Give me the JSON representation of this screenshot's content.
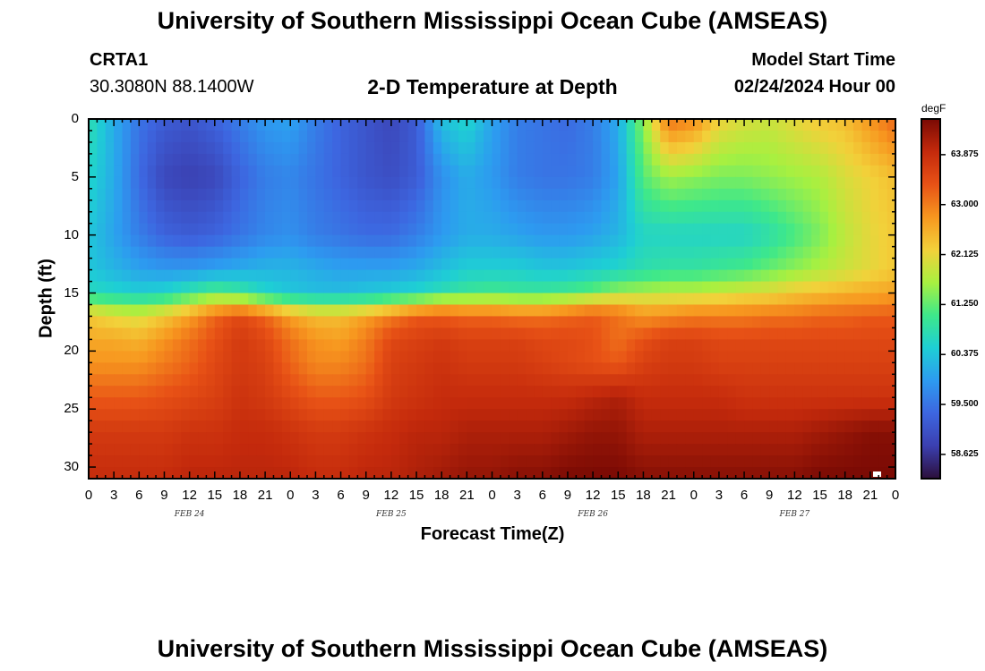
{
  "page_title_top": "University of Southern Mississippi Ocean Cube (AMSEAS)",
  "page_title_bottom": "University of Southern Mississippi Ocean Cube (AMSEAS)",
  "station": {
    "id": "CRTA1",
    "coords": "30.3080N  88.1400W"
  },
  "model": {
    "label": "Model Start Time",
    "value": "02/24/2024 Hour 00"
  },
  "colorscale": {
    "stops": [
      "#2c0f3a",
      "#3b3fb0",
      "#3d66e0",
      "#2d9bf0",
      "#1ecfd4",
      "#3ee88a",
      "#a8f040",
      "#f2d13a",
      "#f7971f",
      "#e85216",
      "#c42a0c",
      "#7a0a04"
    ]
  },
  "chart_data": {
    "type": "heatmap",
    "title": "2-D Temperature at Depth",
    "xlabel": "Forecast Time(Z)",
    "ylabel": "Depth (ft)",
    "x_hours": [
      0,
      3,
      6,
      9,
      12,
      15,
      18,
      21,
      24,
      27,
      30,
      33,
      36,
      39,
      42,
      45,
      48,
      51,
      54,
      57,
      60,
      63,
      66,
      69,
      72,
      75,
      78,
      81,
      84,
      87,
      90,
      93,
      96
    ],
    "x_tick_labels": [
      "0",
      "3",
      "6",
      "9",
      "12",
      "15",
      "18",
      "21",
      "0",
      "3",
      "6",
      "9",
      "12",
      "15",
      "18",
      "21",
      "0",
      "3",
      "6",
      "9",
      "12",
      "15",
      "18",
      "21",
      "0",
      "3",
      "6",
      "9",
      "12",
      "15",
      "18",
      "21",
      "0"
    ],
    "day_labels": [
      "FEB 24",
      "FEB 25",
      "FEB 26",
      "FEB 27"
    ],
    "y_ticks": [
      0,
      5,
      10,
      15,
      20,
      25,
      30
    ],
    "y_tick_labels": [
      "0",
      "5",
      "10",
      "15",
      "20",
      "25",
      "30"
    ],
    "ylim": [
      0,
      31
    ],
    "colorbar_unit": "degF",
    "colorbar_ticks": [
      58.625,
      59.5,
      60.375,
      61.25,
      62.125,
      63.0,
      63.875
    ],
    "colorbar_tick_labels": [
      "58.625",
      "59.500",
      "60.375",
      "61.250",
      "62.125",
      "63.000",
      "63.875"
    ],
    "crange": [
      58.2,
      64.5
    ],
    "depth_levels": [
      0,
      5,
      10,
      13,
      15,
      16,
      17,
      19,
      21,
      24,
      27,
      31
    ],
    "values": [
      [
        60.8,
        60.1,
        59.5,
        59.2,
        59.1,
        59.3,
        59.6,
        59.9,
        60.0,
        59.6,
        59.3,
        59.1,
        58.9,
        59.2,
        60.3,
        60.6,
        60.0,
        59.6,
        59.5,
        59.4,
        59.6,
        60.1,
        61.5,
        63.1,
        62.9,
        62.2,
        62.0,
        61.9,
        62.1,
        62.3,
        62.4,
        62.8,
        63.2
      ],
      [
        60.6,
        60.1,
        59.4,
        58.9,
        58.8,
        58.9,
        59.3,
        59.6,
        59.7,
        59.5,
        59.3,
        59.1,
        59.0,
        59.2,
        59.8,
        60.1,
        59.9,
        59.6,
        59.5,
        59.5,
        59.6,
        60.0,
        61.2,
        61.6,
        61.5,
        61.4,
        61.4,
        61.5,
        61.6,
        61.7,
        62.0,
        62.2,
        62.4
      ],
      [
        60.4,
        60.0,
        59.6,
        59.3,
        59.2,
        59.3,
        59.5,
        59.7,
        59.8,
        59.6,
        59.5,
        59.4,
        59.4,
        59.6,
        59.9,
        60.1,
        60.1,
        60.0,
        59.9,
        59.9,
        60.0,
        60.2,
        60.6,
        60.6,
        60.6,
        60.6,
        60.6,
        60.8,
        61.1,
        61.4,
        61.8,
        62.1,
        62.3
      ],
      [
        60.4,
        60.2,
        60.0,
        59.9,
        59.9,
        60.0,
        60.1,
        60.2,
        60.2,
        60.1,
        60.0,
        60.0,
        60.0,
        60.1,
        60.3,
        60.5,
        60.5,
        60.5,
        60.4,
        60.4,
        60.5,
        60.6,
        60.8,
        60.9,
        60.9,
        61.0,
        61.1,
        61.3,
        61.5,
        61.7,
        61.9,
        62.1,
        62.3
      ],
      [
        60.7,
        60.6,
        60.5,
        60.6,
        60.9,
        61.2,
        61.0,
        60.6,
        60.4,
        60.3,
        60.3,
        60.4,
        60.5,
        60.6,
        60.8,
        61.0,
        61.1,
        61.0,
        61.0,
        61.1,
        61.3,
        61.6,
        61.7,
        61.8,
        61.8,
        61.9,
        62.0,
        62.1,
        62.3,
        62.4,
        62.5,
        62.6,
        62.7
      ],
      [
        61.6,
        61.4,
        61.3,
        61.5,
        61.9,
        62.3,
        62.4,
        62.0,
        61.6,
        61.4,
        61.4,
        61.5,
        61.8,
        62.1,
        62.4,
        62.3,
        62.3,
        62.2,
        62.2,
        62.4,
        62.6,
        62.6,
        62.4,
        62.4,
        62.5,
        62.5,
        62.6,
        62.6,
        62.7,
        62.8,
        62.9,
        62.9,
        63.0
      ],
      [
        62.3,
        62.1,
        62.0,
        62.3,
        62.7,
        63.2,
        63.5,
        63.2,
        62.7,
        62.4,
        62.4,
        62.7,
        63.0,
        63.3,
        63.3,
        63.2,
        63.2,
        63.1,
        63.1,
        63.2,
        63.3,
        63.1,
        62.8,
        62.9,
        63.0,
        63.0,
        63.0,
        63.1,
        63.1,
        63.2,
        63.2,
        63.3,
        63.3
      ],
      [
        62.6,
        62.6,
        62.5,
        62.8,
        63.1,
        63.4,
        63.7,
        63.5,
        63.1,
        62.8,
        62.7,
        63.0,
        63.5,
        63.6,
        63.7,
        63.6,
        63.6,
        63.6,
        63.5,
        63.5,
        63.4,
        63.1,
        63.4,
        63.6,
        63.6,
        63.5,
        63.5,
        63.5,
        63.5,
        63.5,
        63.5,
        63.5,
        63.5
      ],
      [
        62.8,
        62.8,
        62.8,
        63.0,
        63.2,
        63.5,
        63.7,
        63.6,
        63.2,
        62.9,
        62.9,
        63.1,
        63.6,
        63.7,
        63.8,
        63.7,
        63.7,
        63.7,
        63.6,
        63.5,
        63.4,
        63.3,
        63.6,
        63.7,
        63.7,
        63.6,
        63.6,
        63.6,
        63.6,
        63.6,
        63.6,
        63.6,
        63.6
      ],
      [
        63.3,
        63.3,
        63.3,
        63.4,
        63.5,
        63.6,
        63.8,
        63.7,
        63.5,
        63.3,
        63.3,
        63.4,
        63.7,
        63.8,
        63.9,
        63.9,
        63.9,
        63.9,
        63.9,
        63.9,
        64.0,
        64.1,
        63.9,
        63.9,
        63.9,
        63.9,
        63.8,
        63.8,
        63.8,
        63.8,
        63.8,
        63.8,
        63.8
      ],
      [
        63.7,
        63.7,
        63.7,
        63.7,
        63.8,
        63.8,
        63.9,
        63.9,
        63.8,
        63.7,
        63.7,
        63.8,
        63.9,
        64.0,
        64.0,
        64.1,
        64.1,
        64.1,
        64.1,
        64.2,
        64.3,
        64.3,
        64.1,
        64.1,
        64.1,
        64.1,
        64.1,
        64.1,
        64.1,
        64.2,
        64.3,
        64.4,
        64.4
      ],
      [
        63.9,
        63.9,
        63.9,
        63.9,
        64.0,
        64.0,
        64.0,
        64.0,
        64.0,
        63.9,
        63.9,
        64.0,
        64.0,
        64.1,
        64.2,
        64.3,
        64.3,
        64.4,
        64.4,
        64.5,
        64.5,
        64.5,
        64.4,
        64.4,
        64.4,
        64.4,
        64.4,
        64.4,
        64.4,
        64.5,
        64.5,
        64.5,
        64.5
      ]
    ]
  }
}
